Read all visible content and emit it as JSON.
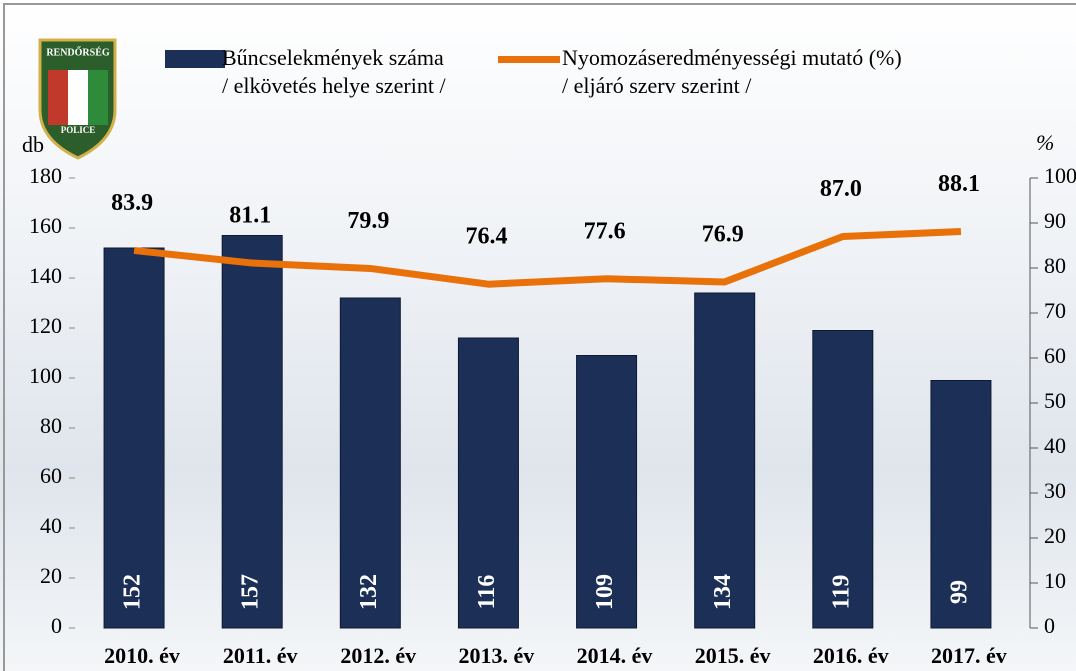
{
  "logo": {
    "top": "RENDŐRSÉG",
    "bottom": "POLICE"
  },
  "chart_data": {
    "type": "bar-line",
    "categories": [
      "2010. év",
      "2011. év",
      "2012. év",
      "2013. év",
      "2014. év",
      "2015. év",
      "2016. év",
      "2017. év"
    ],
    "y_label": "db",
    "y2_label": "%",
    "series": [
      {
        "name": "Bűncselekmények száma\n/ elkövetés helye szerint /",
        "color": "#1c2f57",
        "type": "bar",
        "values": [
          152,
          157,
          132,
          116,
          109,
          134,
          119,
          99
        ]
      },
      {
        "name": "Nyomozáseredményességi mutató (%)\n/ eljáró szerv szerint /",
        "color": "#e8710a",
        "type": "line",
        "axis": "y2",
        "values": [
          83.9,
          81.1,
          79.9,
          76.4,
          77.6,
          76.9,
          87.0,
          88.1
        ],
        "value_labels": [
          "83.9",
          "81.1",
          "79.9",
          "76.4",
          "77.6",
          "76.9",
          "87.0",
          "88.1"
        ]
      }
    ],
    "ylim": [
      0,
      180
    ],
    "yticks": [
      0,
      20,
      40,
      60,
      80,
      100,
      120,
      140,
      160,
      180
    ],
    "y2lim": [
      0,
      100
    ],
    "y2ticks": [
      0,
      10,
      20,
      30,
      40,
      50,
      60,
      70,
      80,
      90,
      100
    ]
  }
}
